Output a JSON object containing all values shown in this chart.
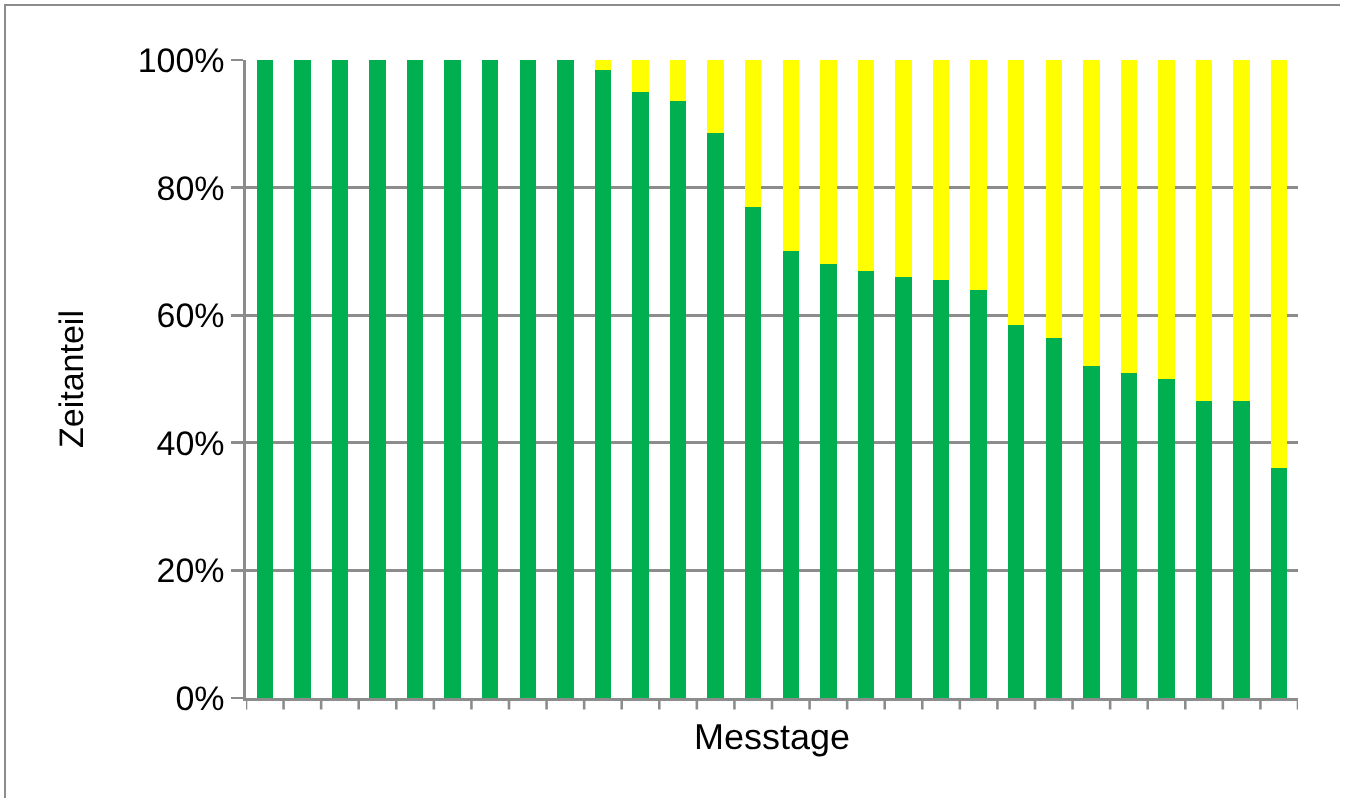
{
  "chart_data": {
    "type": "bar",
    "stacked": true,
    "xlabel": "Messtage",
    "ylabel": "Zeitanteil",
    "categories": [
      null,
      null,
      null,
      null,
      null,
      null,
      null,
      null,
      null,
      null,
      null,
      null,
      null,
      null,
      null,
      null,
      null,
      null,
      null,
      null,
      null,
      null,
      null,
      null,
      null,
      null,
      null,
      null
    ],
    "series": [
      {
        "color": "#00b050",
        "values": [
          100,
          100,
          100,
          100,
          100,
          100,
          100,
          100,
          100,
          98.5,
          95,
          93.5,
          88.5,
          77,
          70,
          68,
          67,
          66,
          65.5,
          64,
          58.5,
          56.5,
          52,
          51,
          50,
          46.5,
          46.5,
          36
        ]
      },
      {
        "color": "#ffff00",
        "values": [
          0,
          0,
          0,
          0,
          0,
          0,
          0,
          0,
          0,
          1.5,
          5,
          6.5,
          11.5,
          23,
          30,
          32,
          33,
          34,
          34.5,
          36,
          41.5,
          43.5,
          48,
          49,
          50,
          53.5,
          53.5,
          64
        ]
      }
    ],
    "ylim": [
      0,
      100
    ],
    "yticks": [
      {
        "value": 0,
        "label": "0%"
      },
      {
        "value": 20,
        "label": "20%"
      },
      {
        "value": 40,
        "label": "40%"
      },
      {
        "value": 60,
        "label": "60%"
      },
      {
        "value": 80,
        "label": "80%"
      },
      {
        "value": 100,
        "label": "100%"
      }
    ],
    "grid": "y",
    "tick_labels": "y"
  }
}
